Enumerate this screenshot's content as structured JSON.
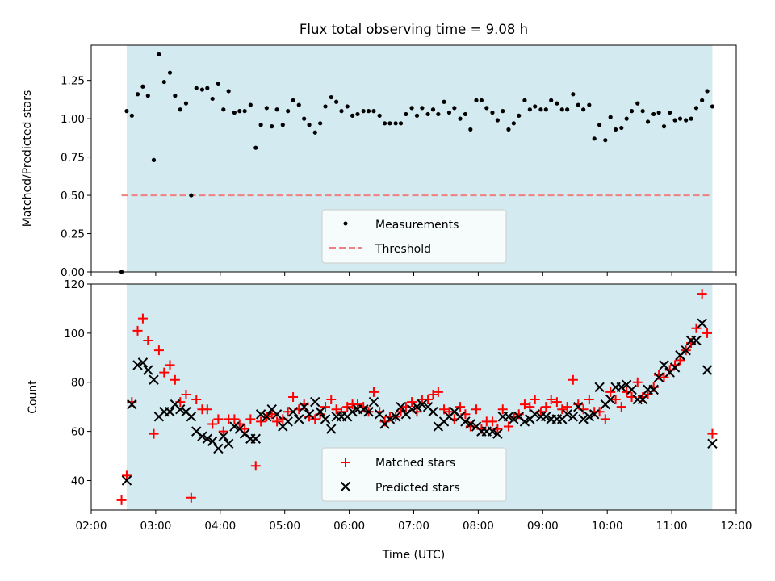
{
  "chart_data": [
    {
      "type": "scatter",
      "title": "Flux total observing time = 9.08 h",
      "ylabel": "Matched/Predicted stars",
      "xlabel": "",
      "ylim": [
        0,
        1.48
      ],
      "yticks": [
        "0.00",
        "0.25",
        "0.50",
        "0.75",
        "1.00",
        "1.25"
      ],
      "shaded_span_hours": [
        2.55,
        11.63
      ],
      "shade_color": "#d3eaf1",
      "threshold": 0.5,
      "legend_position": "lower center",
      "legend": [
        "Measurements",
        "Threshold"
      ],
      "series": [
        {
          "name": "Measurements",
          "marker": "dot",
          "color": "#000000",
          "x": [
            2.47,
            2.55,
            2.63,
            2.72,
            2.8,
            2.88,
            2.97,
            3.05,
            3.13,
            3.22,
            3.3,
            3.38,
            3.47,
            3.55,
            3.63,
            3.72,
            3.8,
            3.88,
            3.97,
            4.05,
            4.13,
            4.22,
            4.3,
            4.38,
            4.47,
            4.55,
            4.63,
            4.72,
            4.8,
            4.88,
            4.97,
            5.05,
            5.13,
            5.22,
            5.3,
            5.38,
            5.47,
            5.55,
            5.63,
            5.72,
            5.8,
            5.88,
            5.97,
            6.05,
            6.13,
            6.22,
            6.3,
            6.38,
            6.47,
            6.55,
            6.63,
            6.72,
            6.8,
            6.88,
            6.97,
            7.05,
            7.13,
            7.22,
            7.3,
            7.38,
            7.47,
            7.55,
            7.63,
            7.72,
            7.8,
            7.88,
            7.97,
            8.05,
            8.13,
            8.22,
            8.3,
            8.38,
            8.47,
            8.55,
            8.63,
            8.72,
            8.8,
            8.88,
            8.97,
            9.05,
            9.13,
            9.22,
            9.3,
            9.38,
            9.47,
            9.55,
            9.63,
            9.72,
            9.8,
            9.88,
            9.97,
            10.05,
            10.13,
            10.22,
            10.3,
            10.38,
            10.47,
            10.55,
            10.63,
            10.72,
            10.8,
            10.88,
            10.97,
            11.05,
            11.13,
            11.22,
            11.3,
            11.38,
            11.47,
            11.55,
            11.63
          ],
          "y": [
            0.0,
            1.05,
            1.02,
            1.16,
            1.21,
            1.15,
            0.73,
            1.42,
            1.24,
            1.3,
            1.15,
            1.06,
            1.1,
            0.5,
            1.2,
            1.19,
            1.2,
            1.13,
            1.23,
            1.06,
            1.18,
            1.04,
            1.05,
            1.05,
            1.09,
            0.81,
            0.96,
            1.07,
            0.95,
            1.06,
            0.96,
            1.05,
            1.12,
            1.09,
            1.0,
            0.96,
            0.91,
            0.97,
            1.08,
            1.14,
            1.11,
            1.05,
            1.08,
            1.02,
            1.03,
            1.05,
            1.05,
            1.05,
            1.02,
            0.97,
            0.97,
            0.97,
            0.97,
            1.03,
            1.07,
            1.02,
            1.07,
            1.03,
            1.06,
            1.03,
            1.11,
            1.04,
            1.07,
            1.0,
            1.03,
            0.93,
            1.12,
            1.12,
            1.07,
            1.04,
            0.99,
            1.05,
            0.93,
            0.97,
            1.02,
            1.12,
            1.06,
            1.08,
            1.06,
            1.06,
            1.12,
            1.1,
            1.06,
            1.06,
            1.16,
            1.09,
            1.06,
            1.09,
            0.87,
            0.96,
            0.86,
            1.01,
            0.93,
            0.94,
            1.0,
            1.05,
            1.1,
            1.05,
            0.98,
            1.03,
            1.04,
            0.95,
            1.04,
            0.99,
            1.0,
            0.99,
            1.0,
            1.07,
            1.12,
            1.18,
            1.08
          ]
        },
        {
          "name": "Threshold",
          "style": "dashed",
          "color": "#f08080",
          "x": [
            2.47,
            11.63
          ],
          "y": [
            0.5,
            0.5
          ]
        }
      ]
    },
    {
      "type": "scatter",
      "title": "",
      "ylabel": "Count",
      "xlabel": "Time (UTC)",
      "ylim": [
        28,
        120
      ],
      "yticks": [
        "40",
        "60",
        "80",
        "100",
        "120"
      ],
      "xlim_hours": [
        2.0,
        12.0
      ],
      "xticks": [
        "02:00",
        "03:00",
        "04:00",
        "05:00",
        "06:00",
        "07:00",
        "08:00",
        "09:00",
        "10:00",
        "11:00",
        "12:00"
      ],
      "shaded_span_hours": [
        2.55,
        11.63
      ],
      "shade_color": "#d3eaf1",
      "legend_position": "lower center",
      "legend": [
        "Matched stars",
        "Predicted stars"
      ],
      "series": [
        {
          "name": "Matched stars",
          "marker": "plus",
          "color": "#ff0000",
          "x": [
            2.47,
            2.55,
            2.63,
            2.72,
            2.8,
            2.88,
            2.97,
            3.05,
            3.13,
            3.22,
            3.3,
            3.38,
            3.47,
            3.55,
            3.63,
            3.72,
            3.8,
            3.88,
            3.97,
            4.05,
            4.13,
            4.22,
            4.3,
            4.38,
            4.47,
            4.55,
            4.63,
            4.72,
            4.8,
            4.88,
            4.97,
            5.05,
            5.13,
            5.22,
            5.3,
            5.38,
            5.47,
            5.55,
            5.63,
            5.72,
            5.8,
            5.88,
            5.97,
            6.05,
            6.13,
            6.22,
            6.3,
            6.38,
            6.47,
            6.55,
            6.63,
            6.72,
            6.8,
            6.88,
            6.97,
            7.05,
            7.13,
            7.22,
            7.3,
            7.38,
            7.47,
            7.55,
            7.63,
            7.72,
            7.8,
            7.88,
            7.97,
            8.05,
            8.13,
            8.22,
            8.3,
            8.38,
            8.47,
            8.55,
            8.63,
            8.72,
            8.8,
            8.88,
            8.97,
            9.05,
            9.13,
            9.22,
            9.3,
            9.38,
            9.47,
            9.55,
            9.63,
            9.72,
            9.8,
            9.88,
            9.97,
            10.05,
            10.13,
            10.22,
            10.3,
            10.38,
            10.47,
            10.55,
            10.63,
            10.72,
            10.8,
            10.88,
            10.97,
            11.05,
            11.13,
            11.22,
            11.3,
            11.38,
            11.47,
            11.55,
            11.63
          ],
          "y": [
            32,
            42,
            72,
            101,
            106,
            97,
            59,
            93,
            84,
            87,
            81,
            72,
            75,
            33,
            73,
            69,
            69,
            63,
            65,
            60,
            65,
            65,
            63,
            61,
            65,
            46,
            64,
            66,
            67,
            64,
            65,
            68,
            74,
            69,
            71,
            66,
            65,
            67,
            70,
            73,
            69,
            68,
            70,
            71,
            71,
            70,
            68,
            76,
            68,
            64,
            66,
            66,
            68,
            70,
            72,
            68,
            73,
            73,
            75,
            76,
            69,
            68,
            65,
            70,
            67,
            62,
            69,
            61,
            64,
            64,
            61,
            69,
            62,
            66,
            67,
            71,
            70,
            73,
            68,
            70,
            73,
            72,
            69,
            70,
            81,
            71,
            69,
            73,
            68,
            68,
            65,
            76,
            73,
            70,
            76,
            74,
            80,
            74,
            75,
            78,
            83,
            82,
            85,
            87,
            89,
            93,
            96,
            102,
            116,
            100,
            59
          ]
        },
        {
          "name": "Predicted stars",
          "marker": "x",
          "color": "#000000",
          "x": [
            2.55,
            2.63,
            2.72,
            2.8,
            2.88,
            2.97,
            3.05,
            3.13,
            3.22,
            3.3,
            3.38,
            3.47,
            3.55,
            3.63,
            3.72,
            3.8,
            3.88,
            3.97,
            4.05,
            4.13,
            4.22,
            4.3,
            4.38,
            4.47,
            4.55,
            4.63,
            4.72,
            4.8,
            4.88,
            4.97,
            5.05,
            5.13,
            5.22,
            5.3,
            5.38,
            5.47,
            5.55,
            5.63,
            5.72,
            5.8,
            5.88,
            5.97,
            6.05,
            6.13,
            6.22,
            6.3,
            6.38,
            6.47,
            6.55,
            6.63,
            6.72,
            6.8,
            6.88,
            6.97,
            7.05,
            7.13,
            7.22,
            7.3,
            7.38,
            7.47,
            7.55,
            7.63,
            7.72,
            7.8,
            7.88,
            7.97,
            8.05,
            8.13,
            8.22,
            8.3,
            8.38,
            8.47,
            8.55,
            8.63,
            8.72,
            8.8,
            8.88,
            8.97,
            9.05,
            9.13,
            9.22,
            9.3,
            9.38,
            9.47,
            9.55,
            9.63,
            9.72,
            9.8,
            9.88,
            9.97,
            10.05,
            10.13,
            10.22,
            10.3,
            10.38,
            10.47,
            10.55,
            10.63,
            10.72,
            10.8,
            10.88,
            10.97,
            11.05,
            11.13,
            11.22,
            11.3,
            11.38,
            11.47,
            11.55,
            11.63
          ],
          "y": [
            40,
            71,
            87,
            88,
            85,
            81,
            66,
            68,
            68,
            71,
            69,
            68,
            66,
            60,
            58,
            57,
            56,
            53,
            58,
            55,
            62,
            61,
            59,
            57,
            57,
            67,
            66,
            69,
            67,
            62,
            64,
            68,
            65,
            70,
            67,
            72,
            68,
            65,
            61,
            66,
            66,
            66,
            68,
            69,
            69,
            68,
            72,
            67,
            63,
            65,
            66,
            70,
            67,
            69,
            70,
            71,
            70,
            68,
            62,
            64,
            66,
            68,
            66,
            64,
            63,
            62,
            60,
            60,
            60,
            59,
            66,
            66,
            65,
            66,
            64,
            65,
            67,
            66,
            66,
            65,
            65,
            65,
            67,
            66,
            70,
            65,
            66,
            67,
            78,
            71,
            73,
            78,
            78,
            79,
            77,
            73,
            73,
            77,
            77,
            82,
            87,
            84,
            86,
            91,
            93,
            97,
            97,
            104,
            85,
            55
          ]
        }
      ]
    }
  ]
}
